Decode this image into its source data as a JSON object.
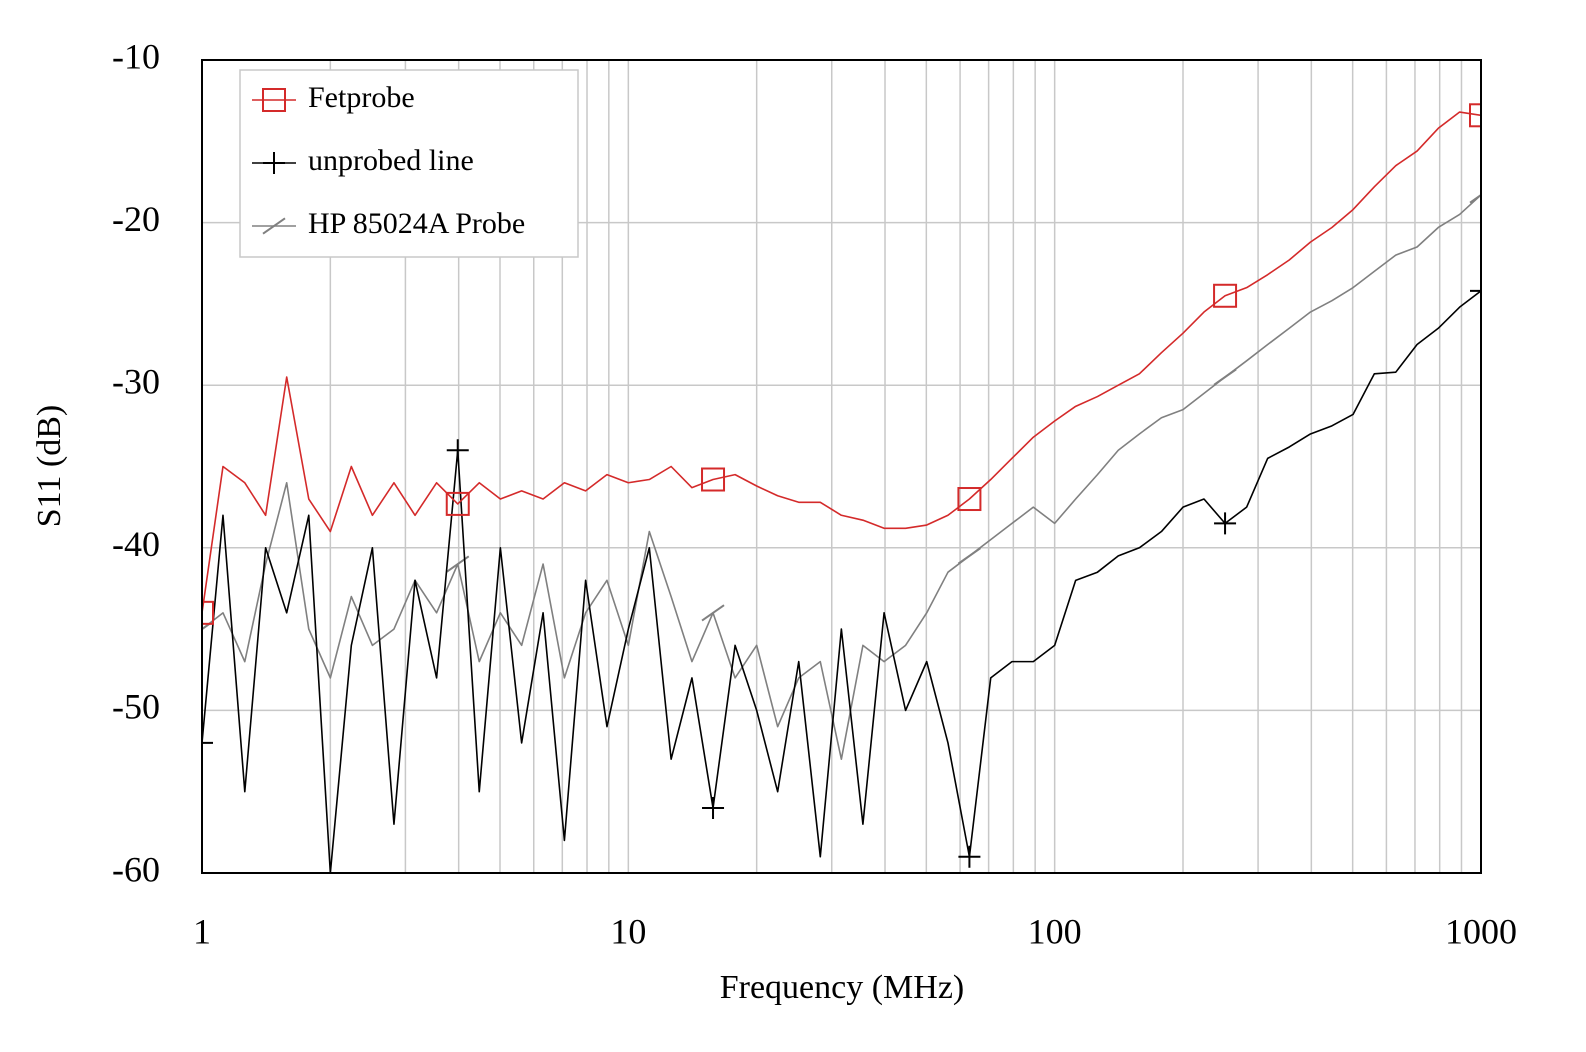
{
  "chart_data": {
    "type": "line",
    "x_label": "Frequency (MHz)",
    "y_label": "S11 (dB)",
    "x_scale": "log",
    "grid": true,
    "legend_position": "upper-left",
    "xlim": [
      1,
      1000
    ],
    "ylim": [
      -60,
      -10
    ],
    "xticks": [
      1,
      10,
      100,
      1000
    ],
    "xgrid_minor": [
      2,
      3,
      4,
      5,
      6,
      7,
      8,
      9,
      20,
      30,
      40,
      50,
      60,
      70,
      80,
      90,
      200,
      300,
      400,
      500,
      600,
      700,
      800,
      900
    ],
    "yticks": [
      -60,
      -50,
      -40,
      -30,
      -20,
      -10
    ],
    "x": [
      1,
      1.12,
      1.26,
      1.41,
      1.58,
      1.78,
      2,
      2.24,
      2.51,
      2.82,
      3.16,
      3.55,
      3.98,
      4.47,
      5.01,
      5.62,
      6.31,
      7.08,
      7.94,
      8.91,
      10,
      11.2,
      12.6,
      14.1,
      15.8,
      17.8,
      20,
      22.4,
      25.1,
      28.2,
      31.6,
      35.5,
      39.8,
      44.7,
      50.1,
      56.2,
      63.1,
      70.8,
      79.4,
      89.1,
      100,
      112,
      126,
      141,
      158,
      178,
      200,
      224,
      251,
      282,
      316,
      355,
      398,
      447,
      501,
      562,
      631,
      708,
      794,
      891,
      1000
    ],
    "series": [
      {
        "name": "Fetprobe",
        "color": "#d42a2a",
        "marker": "square",
        "values": [
          -44,
          -35,
          -36,
          -38,
          -29.5,
          -37,
          -39,
          -35,
          -38,
          -36,
          -38,
          -36,
          -37.3,
          -36,
          -37,
          -36.5,
          -37,
          -36,
          -36.5,
          -35.5,
          -36,
          -35.8,
          -35,
          -36.3,
          -35.8,
          -35.5,
          -36.2,
          -36.8,
          -37.2,
          -37.2,
          -38,
          -38.3,
          -38.8,
          -38.8,
          -38.6,
          -38,
          -37,
          -35.8,
          -34.5,
          -33.2,
          -32.2,
          -31.3,
          -30.7,
          -30,
          -29.3,
          -28,
          -26.8,
          -25.5,
          -24.5,
          -24,
          -23.2,
          -22.3,
          -21.2,
          -20.3,
          -19.2,
          -17.8,
          -16.5,
          -15.6,
          -14.2,
          -13.2,
          -13.4
        ]
      },
      {
        "name": "unprobed line",
        "color": "#000000",
        "marker": "plus",
        "values": [
          -52,
          -38,
          -55,
          -40,
          -44,
          -38,
          -60,
          -46,
          -40,
          -57,
          -42,
          -48,
          -34,
          -55,
          -40,
          -52,
          -44,
          -58,
          -42,
          -51,
          -45,
          -40,
          -53,
          -48,
          -56,
          -46,
          -50,
          -55,
          -47,
          -59,
          -45,
          -57,
          -44,
          -50,
          -47,
          -52,
          -59,
          -48,
          -47,
          -47,
          -46,
          -42,
          -41.5,
          -40.5,
          -40,
          -39,
          -37.5,
          -37,
          -38.5,
          -37.5,
          -34.5,
          -33.8,
          -33,
          -32.5,
          -31.8,
          -29.3,
          -29.2,
          -27.5,
          -26.5,
          -25.2,
          -24.2
        ]
      },
      {
        "name": "HP 85024A Probe",
        "color": "#808080",
        "marker": "slash",
        "values": [
          -45,
          -44,
          -47,
          -41,
          -36,
          -45,
          -48,
          -43,
          -46,
          -45,
          -42,
          -44,
          -41,
          -47,
          -44,
          -46,
          -41,
          -48,
          -44,
          -42,
          -46,
          -39,
          -43,
          -47,
          -44,
          -48,
          -46,
          -51,
          -48,
          -47,
          -53,
          -46,
          -47,
          -46,
          -44,
          -41.5,
          -40.5,
          -39.5,
          -38.5,
          -37.5,
          -38.5,
          -37,
          -35.5,
          -34,
          -33,
          -32,
          -31.5,
          -30.5,
          -29.5,
          -28.5,
          -27.5,
          -26.5,
          -25.5,
          -24.8,
          -24,
          -23,
          -22,
          -21.5,
          -20.3,
          -19.5,
          -18.3
        ]
      }
    ]
  }
}
